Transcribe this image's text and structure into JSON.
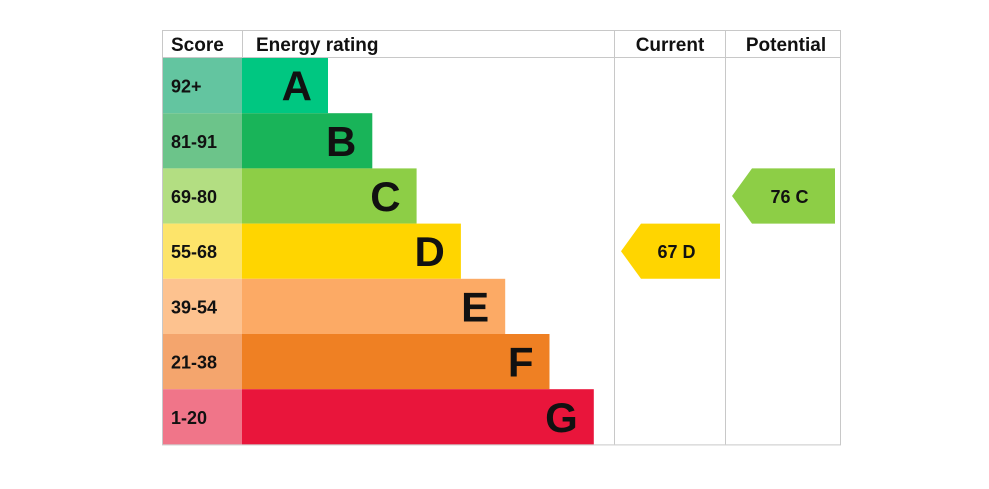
{
  "chart_data": {
    "type": "bar",
    "headers": {
      "score": "Score",
      "energy_rating": "Energy rating",
      "current": "Current",
      "potential": "Potential"
    },
    "bands": [
      {
        "score": "92+",
        "letter": "A",
        "score_color": "#63c5a0",
        "bar_color": "#00c781",
        "value": 1
      },
      {
        "score": "81-91",
        "letter": "B",
        "score_color": "#6cc48a",
        "bar_color": "#19b459",
        "value": 2
      },
      {
        "score": "69-80",
        "letter": "C",
        "score_color": "#b3de82",
        "bar_color": "#8dce46",
        "value": 3
      },
      {
        "score": "55-68",
        "letter": "D",
        "score_color": "#fde46a",
        "bar_color": "#ffd500",
        "value": 4
      },
      {
        "score": "39-54",
        "letter": "E",
        "score_color": "#fdc28f",
        "bar_color": "#fcaa65",
        "value": 5
      },
      {
        "score": "21-38",
        "letter": "F",
        "score_color": "#f4a56d",
        "bar_color": "#ef8023",
        "value": 6
      },
      {
        "score": "1-20",
        "letter": "G",
        "score_color": "#f07589",
        "bar_color": "#e9153b",
        "value": 7
      }
    ],
    "current": {
      "value": 67,
      "rating": "D",
      "text": "67  D",
      "color": "#ffd500"
    },
    "potential": {
      "value": 76,
      "rating": "C",
      "text": "76  C",
      "color": "#8dce46"
    }
  }
}
